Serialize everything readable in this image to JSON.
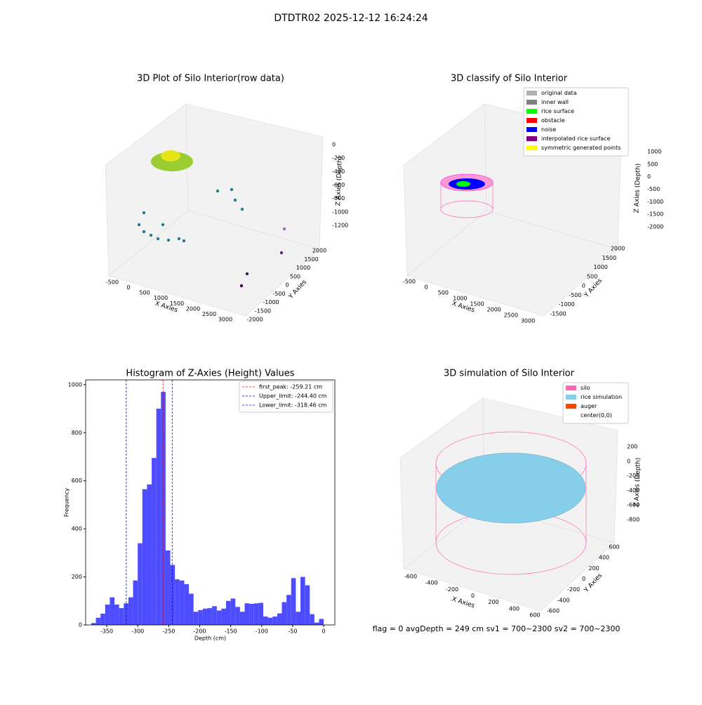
{
  "title": "DTDTR02 2025-12-12 16:24:24",
  "footer": "flag = 0     avgDepth = 249 cm  sv1 = 700~2300  sv2 = 700~2300",
  "chart_data": [
    {
      "type": "scatter3d",
      "title": "3D Plot of Silo Interior(row data)",
      "xlabel": "X Axies",
      "ylabel": "Y Axies",
      "zlabel": "Z Axies (Depth)",
      "xticks": [
        -500,
        0,
        500,
        1000,
        1500,
        2000,
        2500,
        3000
      ],
      "yticks": [
        -2000,
        -1500,
        -1000,
        -500,
        0,
        500,
        1000,
        1500,
        2000
      ],
      "zticks": [
        0,
        -200,
        -400,
        -600,
        -800,
        -1000,
        -1200
      ]
    },
    {
      "type": "scatter3d",
      "title": "3D classify of Silo Interior",
      "xlabel": "X Axies",
      "ylabel": "Y Axies",
      "zlabel": "Z Axies (Depth)",
      "xticks": [
        -500,
        0,
        500,
        1000,
        1500,
        2000,
        2500,
        3000
      ],
      "yticks": [
        -1500,
        -1000,
        -500,
        0,
        500,
        1000,
        1500,
        2000
      ],
      "zticks": [
        1000,
        500,
        0,
        -500,
        -1000,
        -1500,
        -2000
      ],
      "legend": [
        {
          "name": "original data",
          "color": "#b0b0b0"
        },
        {
          "name": "inner wall",
          "color": "#808080"
        },
        {
          "name": "rice surface",
          "color": "#00ff00"
        },
        {
          "name": "obstacle",
          "color": "#ff0000"
        },
        {
          "name": "noise",
          "color": "#0000ff"
        },
        {
          "name": "interpolated rice surface",
          "color": "#800080"
        },
        {
          "name": "symmetric generated points",
          "color": "#ffff00"
        }
      ]
    },
    {
      "type": "histogram",
      "title": "Histogram of Z-Axies (Height) Values",
      "xlabel": "Depth (cm)",
      "ylabel": "Frequency",
      "color": "#4d4dff",
      "bins": [
        -375,
        -367.5,
        -360,
        -352.5,
        -345,
        -337.5,
        -330,
        -322.5,
        -315,
        -307.5,
        -300,
        -292.5,
        -285,
        -277.5,
        -270,
        -262.5,
        -255,
        -247.5,
        -240,
        -232.5,
        -225,
        -217.5,
        -210,
        -202.5,
        -195,
        -187.5,
        -180,
        -172.5,
        -165,
        -157.5,
        -150,
        -142.5,
        -135,
        -127.5,
        -120,
        -112.5,
        -105,
        -97.5,
        -90,
        -82.5,
        -75,
        -67.5,
        -60,
        -52.5,
        -45,
        -37.5,
        -30,
        -22.5,
        -15,
        -7.5,
        0
      ],
      "counts": [
        8,
        30,
        47,
        85,
        115,
        85,
        70,
        90,
        115,
        185,
        340,
        565,
        585,
        695,
        900,
        970,
        310,
        250,
        190,
        185,
        170,
        130,
        55,
        62,
        68,
        70,
        78,
        60,
        68,
        100,
        110,
        75,
        55,
        90,
        88,
        90,
        92,
        35,
        30,
        35,
        48,
        95,
        125,
        195,
        55,
        200,
        165,
        45,
        10,
        25
      ],
      "xlim": [
        -384,
        18
      ],
      "ylim": [
        0,
        1020
      ],
      "xticks": [
        -350,
        -300,
        -250,
        -200,
        -150,
        -100,
        -50,
        0
      ],
      "yticks": [
        0,
        200,
        400,
        600,
        800,
        1000
      ],
      "lines": [
        {
          "name": "first_peak: -259.21 cm",
          "value": -259.21,
          "color": "#ff0000"
        },
        {
          "name": "Upper_limit: -244.40 cm",
          "value": -244.4,
          "color": "#0000ff"
        },
        {
          "name": "Lower_limit: -318.46 cm",
          "value": -318.46,
          "color": "#0000ff"
        }
      ]
    },
    {
      "type": "surface3d",
      "title": "3D simulation of Silo Interior",
      "xlabel": "X Axies",
      "ylabel": "Y Axies",
      "zlabel": "Z Axies (Depth)",
      "xticks": [
        -600,
        -400,
        -200,
        0,
        200,
        400,
        600
      ],
      "yticks": [
        -600,
        -400,
        -200,
        0,
        200,
        400,
        600
      ],
      "zticks": [
        200,
        0,
        -200,
        -400,
        -600,
        -800
      ],
      "legend": [
        {
          "name": "silo",
          "color": "#ff69b4"
        },
        {
          "name": "rice simulation",
          "color": "#87ceeb"
        },
        {
          "name": "auger",
          "color": "#ff4500"
        },
        {
          "name": "center(0,0)",
          "color": "#ffffff"
        }
      ]
    }
  ]
}
